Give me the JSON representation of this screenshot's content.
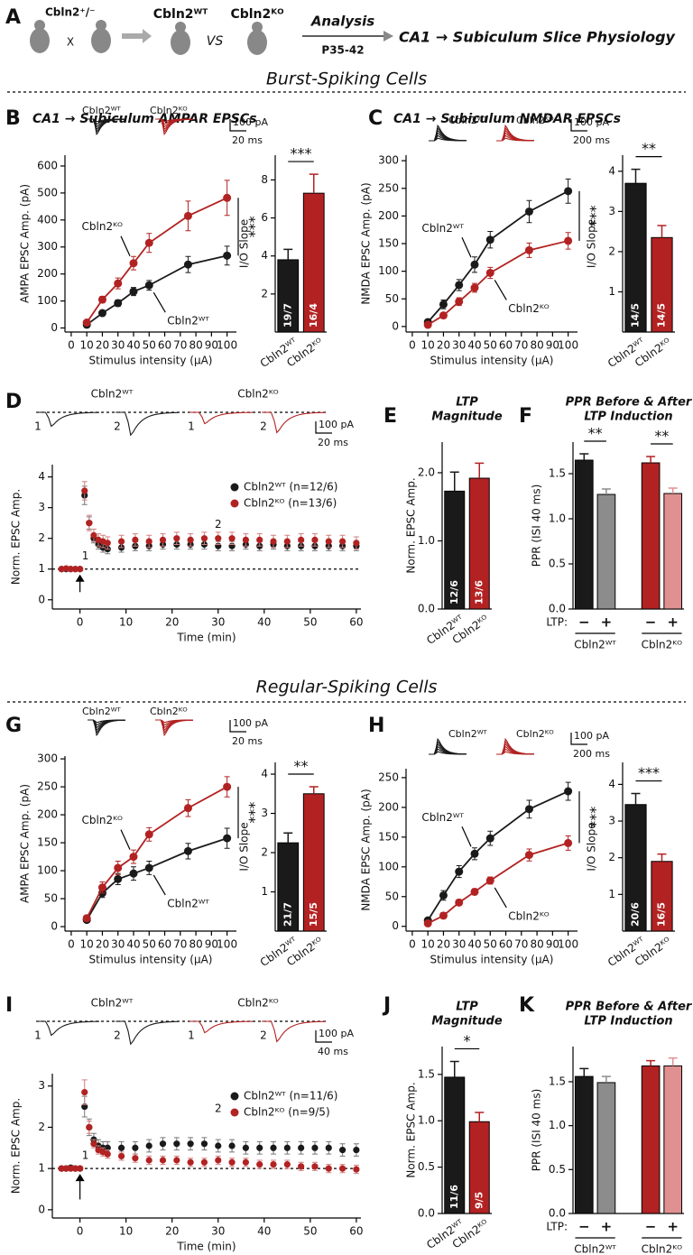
{
  "header": {
    "panel": "A",
    "parent": "Cbln2⁺/⁻",
    "cross": "X",
    "wt": "Cbln2ᵂᵀ",
    "vs": "VS",
    "ko": "Cbln2ᴷᴼ",
    "analysis": "Analysis",
    "age": "P35-42",
    "target": "CA1 → Subiculum Slice Physiology"
  },
  "sections": [
    "Burst-Spiking Cells",
    "Regular-Spiking Cells"
  ],
  "chart_data": [
    {
      "type": "line",
      "panel": "B",
      "title": "CA1 → Subiculum AMPAR EPSCs",
      "xlabel": "Stimulus intensity (μA)",
      "ylabel": "AMPA EPSC Amp. (pA)",
      "x": [
        10,
        20,
        30,
        40,
        50,
        75,
        100
      ],
      "series": [
        {
          "name": "Cbln2ᵂᵀ",
          "color": "#1a1a1a",
          "values": [
            12,
            55,
            92,
            135,
            158,
            235,
            268
          ],
          "errors": [
            5,
            8,
            12,
            15,
            18,
            30,
            35
          ]
        },
        {
          "name": "Cbln2ᴷᴼ",
          "color": "#b22222",
          "values": [
            20,
            105,
            165,
            240,
            315,
            415,
            482
          ],
          "errors": [
            6,
            12,
            20,
            25,
            35,
            55,
            65
          ]
        }
      ],
      "xlim": [
        -4,
        106
      ],
      "xticks": [
        0,
        10,
        20,
        30,
        40,
        50,
        60,
        70,
        80,
        90,
        100
      ],
      "ylim": [
        -15,
        640
      ],
      "yticks": [
        0,
        100,
        200,
        300,
        400,
        500,
        600
      ],
      "significance": "***",
      "scale_bar": [
        "100 pA",
        "20 ms"
      ]
    },
    {
      "type": "bar",
      "ylabel": "I/O Slope",
      "categories": [
        "Cbln2ᵂᵀ",
        "Cbln2ᴷᴼ"
      ],
      "values": [
        3.8,
        7.3
      ],
      "errors": [
        0.55,
        1.0
      ],
      "colors": [
        "#1a1a1a",
        "#b22222"
      ],
      "n_labels": [
        "19/7",
        "16/4"
      ],
      "significance": "***",
      "ylim": [
        0,
        9.3
      ],
      "yticks": [
        2,
        4,
        6,
        8
      ]
    },
    {
      "type": "line",
      "panel": "C",
      "title": "CA1 → Subiculum NMDAR EPSCs",
      "xlabel": "Stimulus intensity (μA)",
      "ylabel": "NMDA EPSC Amp. (pA)",
      "x": [
        10,
        20,
        30,
        40,
        50,
        75,
        100
      ],
      "series": [
        {
          "name": "Cbln2ᵂᵀ",
          "color": "#1a1a1a",
          "values": [
            8,
            40,
            75,
            112,
            157,
            208,
            245
          ],
          "errors": [
            4,
            8,
            10,
            14,
            15,
            20,
            22
          ]
        },
        {
          "name": "Cbln2ᴷᴼ",
          "color": "#b22222",
          "values": [
            3,
            20,
            45,
            70,
            97,
            138,
            155
          ],
          "errors": [
            3,
            5,
            7,
            8,
            10,
            13,
            15
          ]
        }
      ],
      "xlim": [
        -4,
        106
      ],
      "xticks": [
        0,
        10,
        20,
        30,
        40,
        50,
        60,
        70,
        80,
        90,
        100
      ],
      "ylim": [
        -10,
        310
      ],
      "yticks": [
        0,
        50,
        100,
        150,
        200,
        250,
        300
      ],
      "significance": "***",
      "scale_bar": [
        "100 pA",
        "200 ms"
      ]
    },
    {
      "type": "bar",
      "ylabel": "I/O Slope",
      "categories": [
        "Cbln2ᵂᵀ",
        "Cbln2ᴷᴼ"
      ],
      "values": [
        3.7,
        2.35
      ],
      "errors": [
        0.35,
        0.3
      ],
      "colors": [
        "#1a1a1a",
        "#b22222"
      ],
      "n_labels": [
        "14/5",
        "14/5"
      ],
      "significance": "**",
      "ylim": [
        0,
        4.4
      ],
      "yticks": [
        1,
        2,
        3,
        4
      ]
    },
    {
      "type": "scatter",
      "panel": "D",
      "xlabel": "Time (min)",
      "ylabel": "Norm. EPSC Amp.",
      "x": [
        -4,
        -3,
        -2,
        -1,
        0,
        1,
        2,
        3,
        4,
        5,
        6,
        9,
        12,
        15,
        18,
        21,
        24,
        27,
        30,
        33,
        36,
        39,
        42,
        45,
        48,
        51,
        54,
        57,
        60
      ],
      "series": [
        {
          "name": "Cbln2ᵂᵀ (n=12/6)",
          "color": "#1a1a1a",
          "values": [
            1.0,
            1.0,
            1.0,
            1.0,
            1.0,
            3.4,
            2.5,
            2.0,
            1.8,
            1.7,
            1.65,
            1.7,
            1.75,
            1.75,
            1.8,
            1.8,
            1.8,
            1.8,
            1.75,
            1.75,
            1.8,
            1.75,
            1.8,
            1.75,
            1.75,
            1.75,
            1.75,
            1.75,
            1.75
          ],
          "errors": [
            0.05,
            0.05,
            0.05,
            0.05,
            0.05,
            0.3,
            0.2,
            0.15,
            0.15,
            0.15,
            0.15,
            0.15,
            0.15,
            0.15,
            0.15,
            0.15,
            0.15,
            0.15,
            0.15,
            0.15,
            0.15,
            0.15,
            0.15,
            0.15,
            0.15,
            0.15,
            0.15,
            0.15,
            0.15
          ]
        },
        {
          "name": "Cbln2ᴷᴼ (n=13/6)",
          "color": "#b22222",
          "values": [
            1.0,
            1.02,
            1.0,
            1.0,
            1.0,
            3.55,
            2.5,
            2.1,
            1.95,
            1.9,
            1.85,
            1.9,
            1.95,
            1.9,
            1.95,
            2.0,
            1.95,
            2.0,
            2.0,
            2.0,
            1.95,
            1.95,
            1.9,
            1.9,
            1.95,
            1.95,
            1.9,
            1.9,
            1.85
          ],
          "errors": [
            0.06,
            0.06,
            0.06,
            0.06,
            0.06,
            0.3,
            0.25,
            0.2,
            0.2,
            0.2,
            0.2,
            0.2,
            0.2,
            0.2,
            0.2,
            0.2,
            0.2,
            0.2,
            0.2,
            0.2,
            0.2,
            0.2,
            0.2,
            0.2,
            0.2,
            0.2,
            0.2,
            0.2,
            0.2
          ]
        }
      ],
      "xlim": [
        -6,
        61
      ],
      "xticks": [
        0,
        10,
        20,
        30,
        40,
        50,
        60
      ],
      "ylim": [
        -0.3,
        4.4
      ],
      "yticks": [
        0,
        1,
        2,
        3,
        4
      ],
      "reference_line": 1,
      "annotations": [
        "1",
        "2"
      ],
      "trace_labels": [
        "Cbln2ᵂᵀ",
        "Cbln2ᴷᴼ"
      ],
      "scale_bar": [
        "100 pA",
        "20 ms"
      ]
    },
    {
      "type": "bar",
      "panel": "E",
      "title": [
        "LTP",
        "Magnitude"
      ],
      "ylabel": "Norm. EPSC Amp.",
      "categories": [
        "Cbln2ᵂᵀ",
        "Cbln2ᴷᴼ"
      ],
      "values": [
        1.73,
        1.92
      ],
      "errors": [
        0.28,
        0.22
      ],
      "colors": [
        "#1a1a1a",
        "#b22222"
      ],
      "n_labels": [
        "12/6",
        "13/6"
      ],
      "ylim": [
        0,
        2.45
      ],
      "yticks": [
        {
          "value": 0,
          "label": "0.0"
        },
        {
          "value": 1,
          "label": "1.0"
        },
        {
          "value": 2,
          "label": "2.0"
        }
      ]
    },
    {
      "type": "bar",
      "panel": "F",
      "title": [
        "PPR Before & After",
        "LTP Induction"
      ],
      "ylabel": "PPR (ISI 40 ms)",
      "categories": [
        "−",
        "+",
        "−",
        "+"
      ],
      "category_title": "LTP:",
      "groups": [
        "Cbln2ᵂᵀ",
        "Cbln2ᴷᴼ"
      ],
      "values": [
        1.65,
        1.27,
        1.62,
        1.28
      ],
      "errors": [
        0.07,
        0.06,
        0.07,
        0.06
      ],
      "colors": [
        "#1a1a1a",
        "#8c8c8c",
        "#b22222",
        "#e09090"
      ],
      "significance": [
        "**",
        "**"
      ],
      "ylim": [
        0,
        1.85
      ],
      "yticks": [
        {
          "value": 0,
          "label": "0.0"
        },
        {
          "value": 0.5,
          "label": "0.5"
        },
        {
          "value": 1,
          "label": "1.0"
        },
        {
          "value": 1.5,
          "label": "1.5"
        }
      ]
    },
    {
      "type": "line",
      "panel": "G",
      "xlabel": "Stimulus intensity (μA)",
      "ylabel": "AMPA EPSC Amp. (pA)",
      "x": [
        10,
        20,
        30,
        40,
        50,
        75,
        100
      ],
      "series": [
        {
          "name": "Cbln2ᵂᵀ",
          "color": "#1a1a1a",
          "values": [
            12,
            60,
            85,
            95,
            105,
            135,
            158
          ],
          "errors": [
            4,
            8,
            10,
            12,
            12,
            14,
            18
          ]
        },
        {
          "name": "Cbln2ᴷᴼ",
          "color": "#b22222",
          "values": [
            15,
            70,
            105,
            125,
            165,
            212,
            250
          ],
          "errors": [
            5,
            10,
            12,
            12,
            12,
            15,
            18
          ]
        }
      ],
      "xlim": [
        -4,
        106
      ],
      "xticks": [
        0,
        10,
        20,
        30,
        40,
        50,
        60,
        70,
        80,
        90,
        100
      ],
      "ylim": [
        -8,
        305
      ],
      "yticks": [
        0,
        50,
        100,
        150,
        200,
        250,
        300
      ],
      "significance": "***",
      "scale_bar": [
        "100 pA",
        "20 ms"
      ]
    },
    {
      "type": "bar",
      "ylabel": "I/O Slope",
      "categories": [
        "Cbln2ᵂᵀ",
        "Cbln2ᴷᴼ"
      ],
      "values": [
        2.25,
        3.5
      ],
      "errors": [
        0.25,
        0.18
      ],
      "colors": [
        "#1a1a1a",
        "#b22222"
      ],
      "n_labels": [
        "21/7",
        "15/5"
      ],
      "significance": "**",
      "ylim": [
        0,
        4.3
      ],
      "yticks": [
        1,
        2,
        3,
        4
      ]
    },
    {
      "type": "line",
      "panel": "H",
      "xlabel": "Stimulus intensity (μA)",
      "ylabel": "NMDA EPSC Amp. (pA)",
      "x": [
        10,
        20,
        30,
        40,
        50,
        75,
        100
      ],
      "series": [
        {
          "name": "Cbln2ᵂᵀ",
          "color": "#1a1a1a",
          "values": [
            10,
            52,
            92,
            122,
            148,
            197,
            227
          ],
          "errors": [
            4,
            8,
            10,
            10,
            12,
            15,
            15
          ]
        },
        {
          "name": "Cbln2ᴷᴼ",
          "color": "#b22222",
          "values": [
            5,
            18,
            40,
            58,
            77,
            120,
            140
          ],
          "errors": [
            3,
            5,
            5,
            5,
            6,
            10,
            12
          ]
        }
      ],
      "xlim": [
        -4,
        106
      ],
      "xticks": [
        0,
        10,
        20,
        30,
        40,
        50,
        60,
        70,
        80,
        90,
        100
      ],
      "ylim": [
        -8,
        265
      ],
      "yticks": [
        0,
        50,
        100,
        150,
        200,
        250
      ],
      "significance": "***",
      "scale_bar": [
        "100 pA",
        "200 ms"
      ]
    },
    {
      "type": "bar",
      "ylabel": "I/O Slope",
      "categories": [
        "Cbln2ᵂᵀ",
        "Cbln2ᴷᴼ"
      ],
      "values": [
        3.45,
        1.9
      ],
      "errors": [
        0.3,
        0.2
      ],
      "colors": [
        "#1a1a1a",
        "#b22222"
      ],
      "n_labels": [
        "20/6",
        "16/5"
      ],
      "significance": "***",
      "ylim": [
        0,
        4.6
      ],
      "yticks": [
        1,
        2,
        3,
        4
      ]
    },
    {
      "type": "scatter",
      "panel": "I",
      "xlabel": "Time (min)",
      "ylabel": "Norm. EPSC Amp.",
      "x": [
        -4,
        -3,
        -2,
        -1,
        0,
        1,
        2,
        3,
        4,
        5,
        6,
        9,
        12,
        15,
        18,
        21,
        24,
        27,
        30,
        33,
        36,
        39,
        42,
        45,
        48,
        51,
        54,
        57,
        60
      ],
      "series": [
        {
          "name": "Cbln2ᵂᵀ (n=11/6)",
          "color": "#1a1a1a",
          "values": [
            1.0,
            1.0,
            1.02,
            1.0,
            1.0,
            2.5,
            2.0,
            1.7,
            1.55,
            1.5,
            1.5,
            1.5,
            1.5,
            1.55,
            1.6,
            1.6,
            1.6,
            1.6,
            1.55,
            1.55,
            1.5,
            1.5,
            1.5,
            1.5,
            1.5,
            1.5,
            1.5,
            1.45,
            1.45
          ],
          "errors": [
            0.05,
            0.05,
            0.05,
            0.05,
            0.05,
            0.25,
            0.2,
            0.15,
            0.15,
            0.15,
            0.15,
            0.15,
            0.15,
            0.15,
            0.15,
            0.15,
            0.15,
            0.15,
            0.15,
            0.15,
            0.15,
            0.15,
            0.15,
            0.15,
            0.15,
            0.15,
            0.15,
            0.15,
            0.15
          ]
        },
        {
          "name": "Cbln2ᴷᴼ (n=9/5)",
          "color": "#b22222",
          "values": [
            1.0,
            1.0,
            1.0,
            1.0,
            1.0,
            2.85,
            2.0,
            1.6,
            1.45,
            1.4,
            1.35,
            1.3,
            1.25,
            1.2,
            1.2,
            1.2,
            1.15,
            1.15,
            1.2,
            1.15,
            1.15,
            1.1,
            1.1,
            1.1,
            1.05,
            1.05,
            1.0,
            1.0,
            0.98
          ],
          "errors": [
            0.05,
            0.05,
            0.05,
            0.05,
            0.05,
            0.3,
            0.15,
            0.1,
            0.1,
            0.1,
            0.1,
            0.1,
            0.1,
            0.1,
            0.1,
            0.1,
            0.1,
            0.1,
            0.1,
            0.1,
            0.1,
            0.1,
            0.1,
            0.1,
            0.1,
            0.1,
            0.1,
            0.1,
            0.1
          ]
        }
      ],
      "xlim": [
        -6,
        61
      ],
      "xticks": [
        0,
        10,
        20,
        30,
        40,
        50,
        60
      ],
      "ylim": [
        -0.2,
        3.3
      ],
      "yticks": [
        0,
        1,
        2,
        3
      ],
      "reference_line": 1,
      "annotations": [
        "1",
        "2"
      ],
      "trace_labels": [
        "Cbln2ᵂᵀ",
        "Cbln2ᴷᴼ"
      ],
      "scale_bar": [
        "100 pA",
        "40 ms"
      ]
    },
    {
      "type": "bar",
      "panel": "J",
      "title": [
        "LTP",
        "Magnitude"
      ],
      "ylabel": "Norm. EPSC Amp.",
      "categories": [
        "Cbln2ᵂᵀ",
        "Cbln2ᴷᴼ"
      ],
      "values": [
        1.47,
        0.99
      ],
      "errors": [
        0.17,
        0.1
      ],
      "colors": [
        "#1a1a1a",
        "#b22222"
      ],
      "n_labels": [
        "11/6",
        "9/5"
      ],
      "significance": "*",
      "ylim": [
        0,
        1.8
      ],
      "yticks": [
        {
          "value": 0,
          "label": "0.0"
        },
        {
          "value": 0.5,
          "label": "0.5"
        },
        {
          "value": 1,
          "label": "1.0"
        },
        {
          "value": 1.5,
          "label": "1.5"
        }
      ]
    },
    {
      "type": "bar",
      "panel": "K",
      "title": [
        "PPR Before & After",
        "LTP Induction"
      ],
      "ylabel": "PPR (ISI 40 ms)",
      "categories": [
        "−",
        "+",
        "−",
        "+"
      ],
      "category_title": "LTP:",
      "groups": [
        "Cbln2ᵂᵀ",
        "Cbln2ᴷᴼ"
      ],
      "values": [
        1.56,
        1.49,
        1.68,
        1.68
      ],
      "errors": [
        0.09,
        0.07,
        0.06,
        0.09
      ],
      "colors": [
        "#1a1a1a",
        "#8c8c8c",
        "#b22222",
        "#e09090"
      ],
      "ylim": [
        0,
        1.9
      ],
      "yticks": [
        {
          "value": 0,
          "label": "0.0"
        },
        {
          "value": 0.5,
          "label": "0.5"
        },
        {
          "value": 1,
          "label": "1.0"
        },
        {
          "value": 1.5,
          "label": "1.5"
        }
      ]
    }
  ]
}
